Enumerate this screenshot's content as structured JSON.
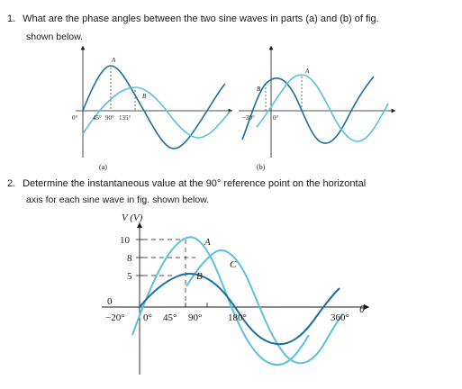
{
  "questions": [
    {
      "number": "1.",
      "line1": "What are the phase angles between the two sine waves in parts (a) and (b) of fig.",
      "line2": "shown below."
    },
    {
      "number": "2.",
      "line1": "Determine the instantaneous value at the 90° reference point on the horizontal",
      "line2": "axis for each sine wave in fig. shown below."
    }
  ],
  "figure_a": {
    "caption": "(a)",
    "wave_labels": [
      "A",
      "B"
    ],
    "axis_labels": [
      "0°",
      "45°",
      "90°",
      "135°"
    ]
  },
  "figure_b": {
    "caption": "(b)",
    "wave_labels": [
      "B",
      "A"
    ],
    "axis_labels": [
      "−30°",
      "0°"
    ]
  },
  "figure_2": {
    "y_axis_title": "V (V)",
    "y_ticks": [
      "10",
      "8",
      "5"
    ],
    "origin": "0",
    "wave_labels": [
      "A",
      "B",
      "C"
    ],
    "x_labels": [
      "−20°",
      "0°",
      "45°",
      "90°",
      "180°",
      "360°"
    ],
    "theta": "θ"
  },
  "colors": {
    "light_wave": "#5bc0de",
    "dark_wave": "#1a6fa0",
    "axis": "#1a1a1a"
  }
}
